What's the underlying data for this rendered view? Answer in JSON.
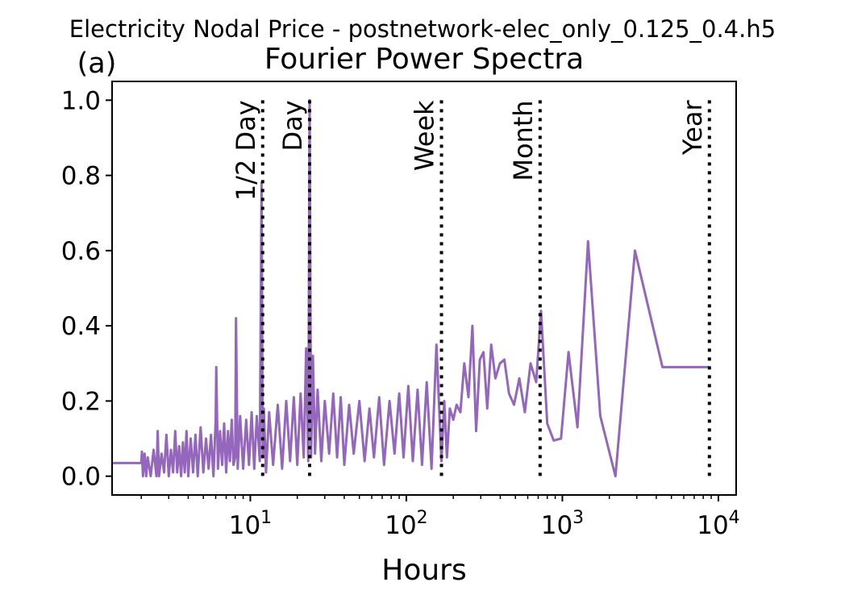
{
  "suptitle": "Electricity Nodal Price - postnetwork-elec_only_0.125_0.4.h5",
  "chart_data": {
    "type": "line",
    "panel_label": "(a)",
    "title": "Fourier Power Spectra",
    "xlabel": "Hours",
    "ylabel": "",
    "xscale": "log",
    "xlim": [
      1.3,
      13000
    ],
    "ylim": [
      -0.05,
      1.05
    ],
    "x_ticks": [
      {
        "value": 10,
        "base": "10",
        "exp": "1"
      },
      {
        "value": 100,
        "base": "10",
        "exp": "2"
      },
      {
        "value": 1000,
        "base": "10",
        "exp": "3"
      },
      {
        "value": 10000,
        "base": "10",
        "exp": "4"
      }
    ],
    "y_ticks": [
      {
        "value": 0.0,
        "label": "0.0"
      },
      {
        "value": 0.2,
        "label": "0.2"
      },
      {
        "value": 0.4,
        "label": "0.4"
      },
      {
        "value": 0.6,
        "label": "0.6"
      },
      {
        "value": 0.8,
        "label": "0.8"
      },
      {
        "value": 1.0,
        "label": "1.0"
      }
    ],
    "grid": false,
    "line_color": "#9467bd",
    "reference_lines": [
      {
        "label": "1/2 Day",
        "x": 12
      },
      {
        "label": "Day",
        "x": 24
      },
      {
        "label": "Week",
        "x": 168
      },
      {
        "label": "Month",
        "x": 720
      },
      {
        "label": "Year",
        "x": 8760
      }
    ],
    "series": [
      {
        "x": [
          1.3,
          2.0,
          2.02,
          2.05,
          2.1,
          2.15,
          2.2,
          2.3,
          2.4,
          2.5,
          2.55,
          2.6,
          2.7,
          2.8,
          2.9,
          3.0,
          3.1,
          3.2,
          3.3,
          3.4,
          3.5,
          3.6,
          3.7,
          3.8,
          3.9,
          4.0,
          4.15,
          4.3,
          4.45,
          4.6,
          4.8,
          5.0,
          5.2,
          5.4,
          5.6,
          5.8,
          6.0,
          6.05,
          6.2,
          6.4,
          6.6,
          6.8,
          7.0,
          7.2,
          7.4,
          7.6,
          7.8,
          8.0,
          8.1,
          8.3,
          8.6,
          9.0,
          9.4,
          9.8,
          10.2,
          10.6,
          11.0,
          11.5,
          11.8,
          12.0,
          12.2,
          12.6,
          13.2,
          14.0,
          15.0,
          16.0,
          17.0,
          18.0,
          19.0,
          20.0,
          21.0,
          22.0,
          22.8,
          23.5,
          24.0,
          24.5,
          25.2,
          26.0,
          27.0,
          28.5,
          30.0,
          32.0,
          34.0,
          36.0,
          38.0,
          40.0,
          43.0,
          46.0,
          50.0,
          54.0,
          58.0,
          62.0,
          67.0,
          72.0,
          78.0,
          84.0,
          90.0,
          96.0,
          103.0,
          110.0,
          118.0,
          126.0,
          135.0,
          145.0,
          156.0,
          168.0,
          175.0,
          182.0,
          190.0,
          200.0,
          210.0,
          222.0,
          235.0,
          250.0,
          265.0,
          280.0,
          296.0,
          312.0,
          330.0,
          350.0,
          372.0,
          398.0,
          425.0,
          455.0,
          490.0,
          530.0,
          575.0,
          625.0,
          680.0,
          730.0,
          800.0,
          880.0,
          980.0,
          1095.0,
          1250.0,
          1460.0,
          1750.0,
          2190.0,
          2920.0,
          4380.0,
          8760.0
        ],
        "y": [
          0.035,
          0.035,
          0.065,
          0.0,
          0.06,
          0.0,
          0.05,
          0.0,
          0.07,
          0.0,
          0.12,
          0.0,
          0.06,
          0.01,
          0.11,
          0.0,
          0.07,
          0.01,
          0.12,
          0.01,
          0.08,
          0.0,
          0.09,
          0.01,
          0.12,
          0.0,
          0.1,
          0.01,
          0.11,
          0.0,
          0.13,
          0.01,
          0.1,
          0.02,
          0.11,
          0.0,
          0.15,
          0.29,
          0.02,
          0.12,
          0.03,
          0.14,
          0.01,
          0.12,
          0.04,
          0.15,
          0.03,
          0.05,
          0.42,
          0.02,
          0.16,
          0.02,
          0.15,
          0.03,
          0.17,
          0.02,
          0.16,
          0.04,
          0.78,
          0.05,
          0.18,
          0.01,
          0.17,
          0.03,
          0.19,
          0.02,
          0.2,
          0.04,
          0.21,
          0.03,
          0.22,
          0.05,
          0.34,
          0.04,
          1.0,
          0.05,
          0.32,
          0.06,
          0.23,
          0.04,
          0.2,
          0.06,
          0.22,
          0.05,
          0.21,
          0.03,
          0.19,
          0.06,
          0.2,
          0.04,
          0.18,
          0.05,
          0.21,
          0.03,
          0.2,
          0.06,
          0.22,
          0.05,
          0.24,
          0.04,
          0.23,
          0.03,
          0.25,
          0.02,
          0.35,
          0.04,
          0.2,
          0.05,
          0.18,
          0.15,
          0.19,
          0.17,
          0.3,
          0.21,
          0.4,
          0.12,
          0.31,
          0.33,
          0.18,
          0.35,
          0.26,
          0.3,
          0.31,
          0.22,
          0.19,
          0.26,
          0.17,
          0.3,
          0.25,
          0.44,
          0.14,
          0.095,
          0.1,
          0.33,
          0.13,
          0.625,
          0.16,
          0.0,
          0.6,
          0.29,
          0.29
        ]
      }
    ]
  }
}
